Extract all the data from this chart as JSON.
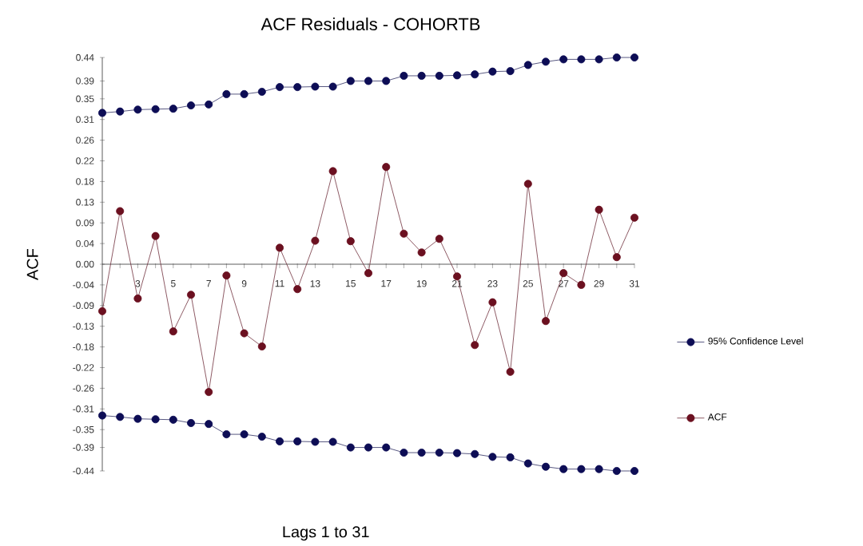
{
  "chart_data": {
    "type": "line",
    "title": "ACF Residuals - COHORTB",
    "xlabel": "Lags  1 to 31",
    "ylabel": "ACF",
    "x": [
      1,
      2,
      3,
      4,
      5,
      6,
      7,
      8,
      9,
      10,
      11,
      12,
      13,
      14,
      15,
      16,
      17,
      18,
      19,
      20,
      21,
      22,
      23,
      24,
      25,
      26,
      27,
      28,
      29,
      30,
      31
    ],
    "xlim": [
      1,
      31
    ],
    "ylim": [
      -0.44,
      0.44
    ],
    "xticks": [
      {
        "value": 1,
        "label": null
      },
      {
        "value": 2,
        "label": null
      },
      3,
      {
        "value": 4,
        "label": null
      },
      5,
      {
        "value": 6,
        "label": null
      },
      7,
      {
        "value": 8,
        "label": null
      },
      9,
      {
        "value": 10,
        "label": null
      },
      11,
      {
        "value": 12,
        "label": null
      },
      13,
      {
        "value": 14,
        "label": null
      },
      15,
      {
        "value": 16,
        "label": null
      },
      17,
      {
        "value": 18,
        "label": null
      },
      19,
      {
        "value": 20,
        "label": null
      },
      21,
      {
        "value": 22,
        "label": null
      },
      23,
      {
        "value": 24,
        "label": null
      },
      25,
      {
        "value": 26,
        "label": null
      },
      27,
      {
        "value": 28,
        "label": null
      },
      29,
      {
        "value": 30,
        "label": null
      },
      31
    ],
    "yticks": [
      {
        "value": 0.44,
        "label": "0.44"
      },
      {
        "value": 0.39,
        "label": "0.39"
      },
      {
        "value": 0.352,
        "label": "0.35"
      },
      {
        "value": 0.308,
        "label": "0.31"
      },
      {
        "value": 0.264,
        "label": "0.26"
      },
      {
        "value": 0.22,
        "label": "0.22"
      },
      {
        "value": 0.176,
        "label": "0.18"
      },
      {
        "value": 0.132,
        "label": "0.13"
      },
      {
        "value": 0.088,
        "label": "0.09"
      },
      {
        "value": 0.044,
        "label": "0.04"
      },
      {
        "value": 0,
        "label": "0.00"
      },
      {
        "value": -0.044,
        "label": "-0.04"
      },
      {
        "value": -0.088,
        "label": "-0.09"
      },
      {
        "value": -0.132,
        "label": "-0.13"
      },
      {
        "value": -0.176,
        "label": "-0.18"
      },
      {
        "value": -0.22,
        "label": "-0.22"
      },
      {
        "value": -0.264,
        "label": "-0.26"
      },
      {
        "value": -0.308,
        "label": "-0.31"
      },
      {
        "value": -0.352,
        "label": "-0.35"
      },
      {
        "value": -0.39,
        "label": "-0.39"
      },
      {
        "value": -0.44,
        "label": "-0.44"
      }
    ],
    "marker": "circle",
    "line_style": "solid",
    "legend": "right",
    "series": [
      {
        "name": "95% Confidence Level",
        "color": "#0d0d55",
        "values": [
          0.322,
          0.325,
          0.329,
          0.33,
          0.331,
          0.338,
          0.34,
          0.362,
          0.362,
          0.367,
          0.377,
          0.377,
          0.378,
          0.378,
          0.39,
          0.39,
          0.39,
          0.401,
          0.401,
          0.401,
          0.402,
          0.404,
          0.41,
          0.411,
          0.424,
          0.431,
          0.436,
          0.436,
          0.436,
          0.44,
          0.44
        ]
      },
      {
        "color": "#0d0d55",
        "values": [
          -0.322,
          -0.325,
          -0.329,
          -0.33,
          -0.331,
          -0.338,
          -0.34,
          -0.362,
          -0.362,
          -0.367,
          -0.377,
          -0.377,
          -0.378,
          -0.378,
          -0.39,
          -0.39,
          -0.39,
          -0.401,
          -0.401,
          -0.401,
          -0.402,
          -0.404,
          -0.41,
          -0.411,
          -0.424,
          -0.431,
          -0.436,
          -0.436,
          -0.436,
          -0.44,
          -0.44
        ]
      },
      {
        "name": "ACF",
        "color": "#6b1020",
        "values": [
          -0.1,
          0.113,
          -0.073,
          0.06,
          -0.143,
          -0.065,
          -0.272,
          -0.024,
          -0.147,
          -0.175,
          0.035,
          -0.053,
          0.05,
          0.198,
          0.049,
          -0.019,
          0.207,
          0.065,
          0.025,
          0.054,
          -0.026,
          -0.172,
          -0.081,
          -0.229,
          0.171,
          -0.121,
          -0.019,
          -0.044,
          0.116,
          0.015,
          0.099
        ]
      }
    ]
  }
}
